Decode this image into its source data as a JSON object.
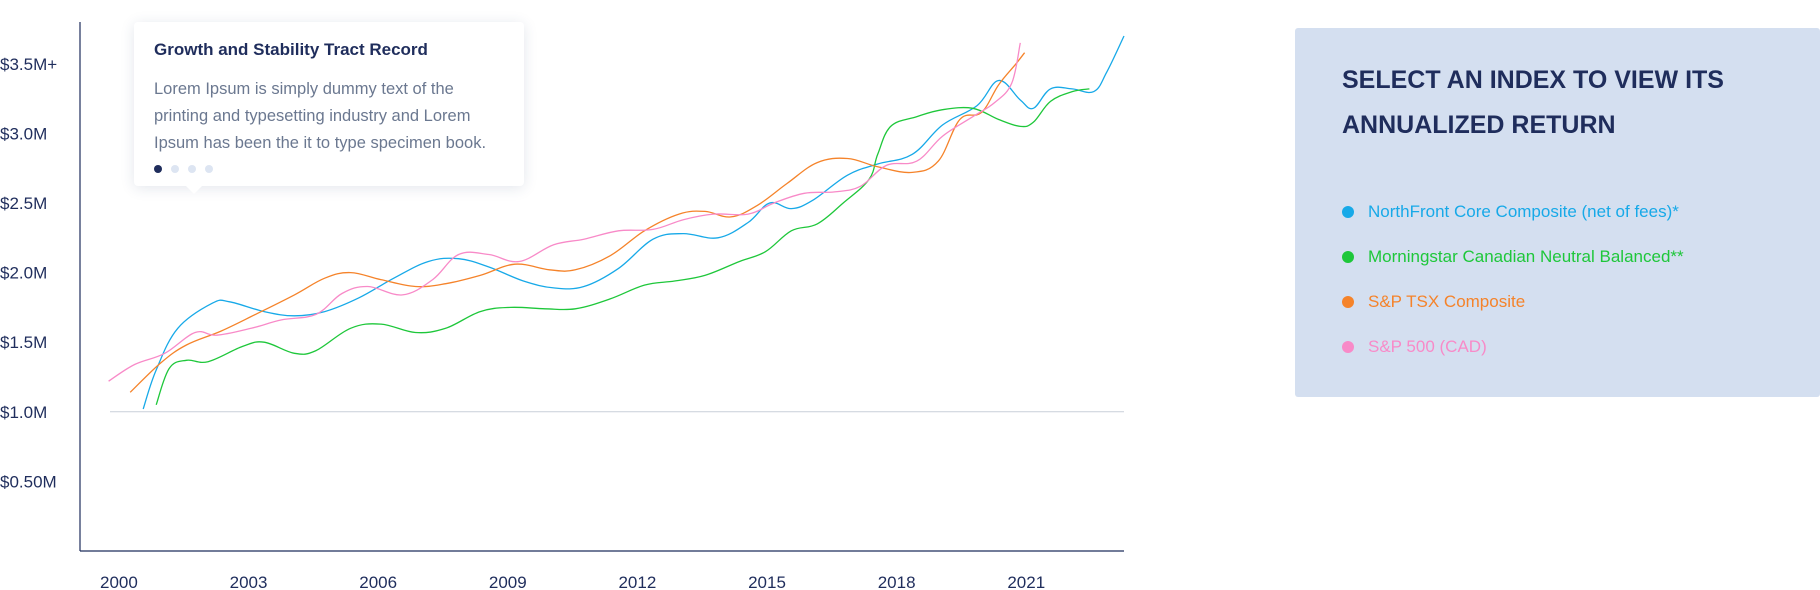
{
  "tooltip": {
    "title": "Growth and Stability Tract Record",
    "body": "Lorem Ipsum is simply dummy text of the printing and typesetting industry and Lorem Ipsum has been the it to type specimen book.",
    "pages": 4,
    "active_page": 1
  },
  "panel": {
    "title": "SELECT AN INDEX TO VIEW ITS ANNUALIZED RETURN"
  },
  "chart_data": {
    "type": "line",
    "title": "",
    "xlabel": "",
    "ylabel": "",
    "xlim": [
      2000,
      2023.7
    ],
    "ylim": [
      0.0,
      3.75
    ],
    "baseline": 1.0,
    "grid": false,
    "legend_position": "right",
    "x_ticks": [
      {
        "value": 2000,
        "label": "2000"
      },
      {
        "value": 2003,
        "label": "2003"
      },
      {
        "value": 2006,
        "label": "2006"
      },
      {
        "value": 2009,
        "label": "2009"
      },
      {
        "value": 2012,
        "label": "2012"
      },
      {
        "value": 2015,
        "label": "2015"
      },
      {
        "value": 2018,
        "label": "2018"
      },
      {
        "value": 2021,
        "label": "2021"
      }
    ],
    "y_ticks": [
      {
        "value": 3.5,
        "label": "$3.5M+"
      },
      {
        "value": 3.0,
        "label": "$3.0M"
      },
      {
        "value": 2.5,
        "label": "$2.5M"
      },
      {
        "value": 2.0,
        "label": "$2.0M"
      },
      {
        "value": 1.5,
        "label": "$1.5M"
      },
      {
        "value": 1.0,
        "label": "$1.0M"
      },
      {
        "value": 0.5,
        "label": "$0.50M"
      }
    ],
    "series": [
      {
        "name": "NorthFront Core Composite (net of fees)*",
        "color": "#17a9e8",
        "points": [
          [
            2001.0,
            1.02
          ],
          [
            2001.3,
            1.3
          ],
          [
            2001.8,
            1.6
          ],
          [
            2002.6,
            1.78
          ],
          [
            2003.0,
            1.79
          ],
          [
            2003.8,
            1.72
          ],
          [
            2004.5,
            1.69
          ],
          [
            2005.2,
            1.72
          ],
          [
            2006.0,
            1.82
          ],
          [
            2006.8,
            1.96
          ],
          [
            2007.6,
            2.08
          ],
          [
            2008.3,
            2.1
          ],
          [
            2009.0,
            2.04
          ],
          [
            2009.8,
            1.94
          ],
          [
            2010.5,
            1.89
          ],
          [
            2011.2,
            1.9
          ],
          [
            2012.0,
            2.03
          ],
          [
            2012.8,
            2.24
          ],
          [
            2013.5,
            2.28
          ],
          [
            2014.3,
            2.25
          ],
          [
            2015.0,
            2.36
          ],
          [
            2015.5,
            2.5
          ],
          [
            2016.0,
            2.46
          ],
          [
            2016.5,
            2.52
          ],
          [
            2017.3,
            2.7
          ],
          [
            2018.0,
            2.78
          ],
          [
            2018.8,
            2.85
          ],
          [
            2019.5,
            3.06
          ],
          [
            2020.3,
            3.2
          ],
          [
            2020.8,
            3.38
          ],
          [
            2021.3,
            3.24
          ],
          [
            2021.6,
            3.18
          ],
          [
            2022.0,
            3.32
          ],
          [
            2022.5,
            3.32
          ],
          [
            2023.0,
            3.3
          ],
          [
            2023.3,
            3.44
          ],
          [
            2023.7,
            3.7
          ]
        ]
      },
      {
        "name": "Morningstar Canadian Neutral Balanced**",
        "color": "#1ec73a",
        "points": [
          [
            2001.3,
            1.05
          ],
          [
            2001.6,
            1.31
          ],
          [
            2002.0,
            1.37
          ],
          [
            2002.5,
            1.36
          ],
          [
            2003.3,
            1.47
          ],
          [
            2003.8,
            1.5
          ],
          [
            2004.5,
            1.42
          ],
          [
            2005.0,
            1.44
          ],
          [
            2005.8,
            1.6
          ],
          [
            2006.5,
            1.63
          ],
          [
            2007.3,
            1.57
          ],
          [
            2008.0,
            1.6
          ],
          [
            2008.8,
            1.72
          ],
          [
            2009.5,
            1.75
          ],
          [
            2010.3,
            1.74
          ],
          [
            2011.0,
            1.74
          ],
          [
            2011.8,
            1.81
          ],
          [
            2012.6,
            1.91
          ],
          [
            2013.3,
            1.94
          ],
          [
            2014.0,
            1.98
          ],
          [
            2014.8,
            2.08
          ],
          [
            2015.4,
            2.15
          ],
          [
            2016.0,
            2.3
          ],
          [
            2016.6,
            2.35
          ],
          [
            2017.2,
            2.5
          ],
          [
            2017.8,
            2.67
          ],
          [
            2018.0,
            2.85
          ],
          [
            2018.3,
            3.05
          ],
          [
            2018.9,
            3.12
          ],
          [
            2019.5,
            3.17
          ],
          [
            2020.2,
            3.18
          ],
          [
            2020.8,
            3.1
          ],
          [
            2021.3,
            3.05
          ],
          [
            2021.6,
            3.08
          ],
          [
            2022.0,
            3.23
          ],
          [
            2022.5,
            3.3
          ],
          [
            2022.9,
            3.32
          ]
        ]
      },
      {
        "name": "S&P TSX Composite",
        "color": "#f5832a",
        "points": [
          [
            2000.7,
            1.14
          ],
          [
            2001.4,
            1.35
          ],
          [
            2002.0,
            1.48
          ],
          [
            2002.8,
            1.58
          ],
          [
            2003.6,
            1.7
          ],
          [
            2004.5,
            1.84
          ],
          [
            2005.2,
            1.96
          ],
          [
            2005.8,
            2.0
          ],
          [
            2006.5,
            1.95
          ],
          [
            2007.3,
            1.9
          ],
          [
            2008.0,
            1.92
          ],
          [
            2008.8,
            1.98
          ],
          [
            2009.6,
            2.06
          ],
          [
            2010.4,
            2.02
          ],
          [
            2011.0,
            2.02
          ],
          [
            2011.8,
            2.12
          ],
          [
            2012.6,
            2.3
          ],
          [
            2013.4,
            2.42
          ],
          [
            2014.0,
            2.44
          ],
          [
            2014.6,
            2.4
          ],
          [
            2015.2,
            2.48
          ],
          [
            2015.9,
            2.64
          ],
          [
            2016.6,
            2.79
          ],
          [
            2017.3,
            2.82
          ],
          [
            2018.0,
            2.76
          ],
          [
            2018.8,
            2.72
          ],
          [
            2019.4,
            2.8
          ],
          [
            2019.9,
            3.1
          ],
          [
            2020.4,
            3.15
          ],
          [
            2020.8,
            3.35
          ],
          [
            2021.2,
            3.5
          ],
          [
            2021.4,
            3.58
          ]
        ]
      },
      {
        "name": "S&P 500 (CAD)",
        "color": "#f88ac8",
        "points": [
          [
            2000.2,
            1.22
          ],
          [
            2000.8,
            1.34
          ],
          [
            2001.5,
            1.42
          ],
          [
            2002.2,
            1.57
          ],
          [
            2002.7,
            1.55
          ],
          [
            2003.5,
            1.6
          ],
          [
            2004.2,
            1.66
          ],
          [
            2005.0,
            1.7
          ],
          [
            2005.6,
            1.85
          ],
          [
            2006.2,
            1.9
          ],
          [
            2007.0,
            1.84
          ],
          [
            2007.7,
            1.95
          ],
          [
            2008.3,
            2.13
          ],
          [
            2009.0,
            2.13
          ],
          [
            2009.7,
            2.08
          ],
          [
            2010.5,
            2.2
          ],
          [
            2011.2,
            2.24
          ],
          [
            2012.0,
            2.3
          ],
          [
            2012.8,
            2.31
          ],
          [
            2013.5,
            2.38
          ],
          [
            2014.2,
            2.42
          ],
          [
            2015.0,
            2.42
          ],
          [
            2015.6,
            2.5
          ],
          [
            2016.3,
            2.57
          ],
          [
            2017.0,
            2.58
          ],
          [
            2017.6,
            2.62
          ],
          [
            2018.2,
            2.77
          ],
          [
            2018.9,
            2.8
          ],
          [
            2019.5,
            2.98
          ],
          [
            2020.2,
            3.12
          ],
          [
            2020.7,
            3.22
          ],
          [
            2021.1,
            3.36
          ],
          [
            2021.3,
            3.65
          ]
        ]
      }
    ]
  }
}
